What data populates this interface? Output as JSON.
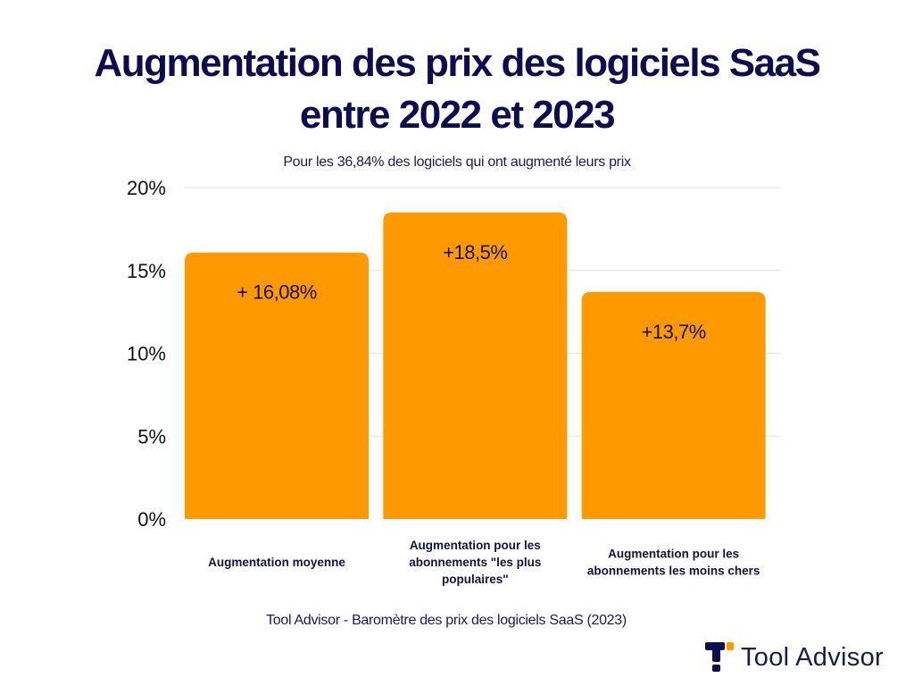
{
  "header": {
    "title_line1": "Augmentation des prix des logiciels SaaS",
    "title_line2": "entre 2022 et 2023",
    "subtitle": "Pour les 36,84% des logiciels qui ont augmenté leurs prix"
  },
  "chart_data": {
    "type": "bar",
    "categories": [
      "Augmentation moyenne",
      "Augmentation pour les abonnements \"les plus populaires\"",
      "Augmentation pour les abonnements les moins chers"
    ],
    "category_lines": [
      [
        "Augmentation moyenne"
      ],
      [
        "Augmentation pour les",
        "abonnements \"les plus",
        "populaires\""
      ],
      [
        "Augmentation pour les",
        "abonnements les moins chers"
      ]
    ],
    "values": [
      16.08,
      18.5,
      13.7
    ],
    "data_labels": [
      "+ 16,08%",
      "+18,5%",
      "+13,7%"
    ],
    "ylim": [
      0,
      20
    ],
    "yticks": [
      0,
      5,
      10,
      15,
      20
    ],
    "ytick_labels": [
      "0%",
      "5%",
      "10%",
      "15%",
      "20%"
    ],
    "grid": true,
    "bar_color": "#ff9900",
    "grid_color": "#e3e3e3"
  },
  "footer": {
    "source": "Tool Advisor - Baromètre des prix des logiciels SaaS (2023)",
    "brand_name": "Tool Advisor",
    "brand_icon": "tool-advisor-logo-icon",
    "logo_colors": {
      "dark": "#0d0b52",
      "accent": "#ff9900"
    }
  }
}
